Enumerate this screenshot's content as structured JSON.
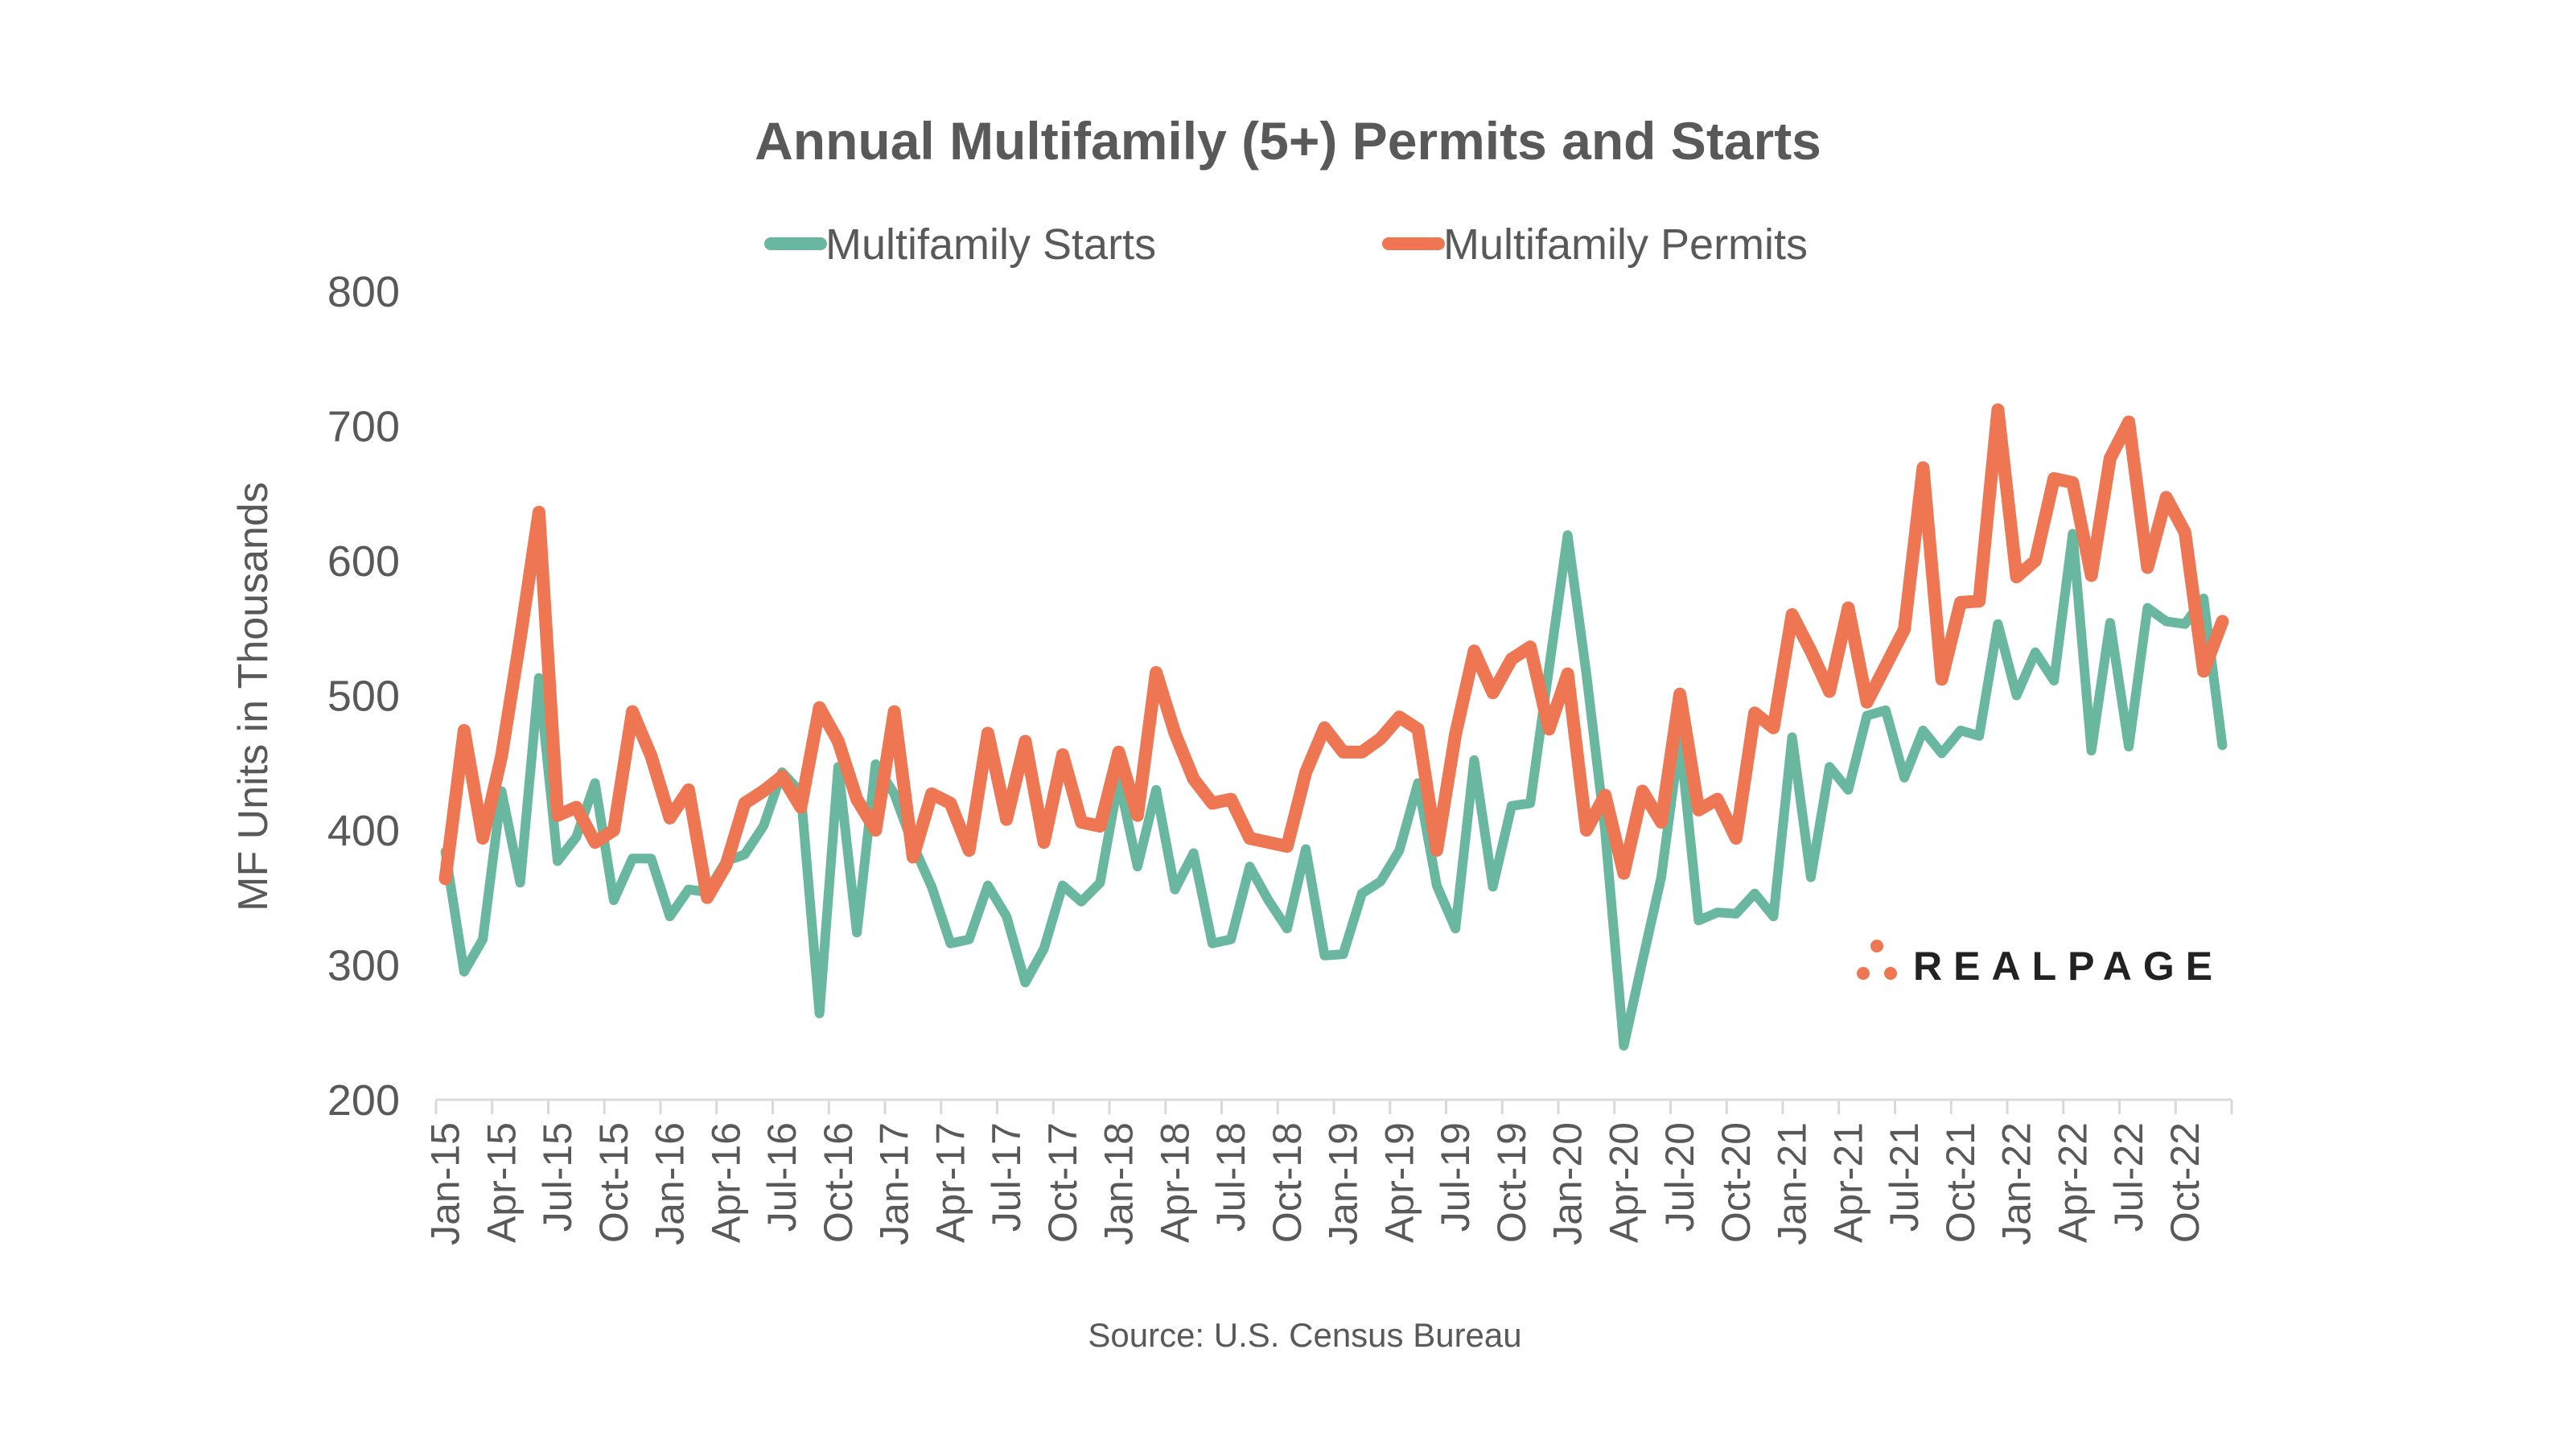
{
  "chart_data": {
    "type": "line",
    "title": "Annual Multifamily (5+) Permits and Starts",
    "xlabel": "",
    "ylabel": "MF Units in Thousands",
    "ylim": [
      200,
      800
    ],
    "yticks": [
      200,
      300,
      400,
      500,
      600,
      700,
      800
    ],
    "grid": false,
    "legend_position": "top-center",
    "source": "Source: U.S. Census Bureau",
    "brand": "REALPAGE",
    "x_start": "Jan-15",
    "x_end": "Dec-22",
    "x_frequency": "monthly",
    "xtick_labels": [
      "Jan-15",
      "Apr-15",
      "Jul-15",
      "Oct-15",
      "Jan-16",
      "Apr-16",
      "Jul-16",
      "Oct-16",
      "Jan-17",
      "Apr-17",
      "Jul-17",
      "Oct-17",
      "Jan-18",
      "Apr-18",
      "Jul-18",
      "Oct-18",
      "Jan-19",
      "Apr-19",
      "Jul-19",
      "Oct-19",
      "Jan-20",
      "Apr-20",
      "Jul-20",
      "Oct-20",
      "Jan-21",
      "Apr-21",
      "Jul-21",
      "Oct-21",
      "Jan-22",
      "Apr-22",
      "Jul-22",
      "Oct-22"
    ],
    "series": [
      {
        "name": "Multifamily Starts",
        "color": "#69B79E",
        "values": [
          384,
          295,
          319,
          429,
          361,
          513,
          377,
          395,
          435,
          348,
          379,
          379,
          336,
          356,
          354,
          377,
          382,
          403,
          443,
          428,
          264,
          447,
          324,
          449,
          427,
          389,
          358,
          316,
          319,
          359,
          336,
          287,
          312,
          359,
          347,
          361,
          438,
          373,
          430,
          356,
          383,
          316,
          319,
          373,
          348,
          327,
          386,
          307,
          308,
          353,
          362,
          385,
          435,
          359,
          327,
          452,
          358,
          418,
          420,
          520,
          619,
          516,
          400,
          240,
          303,
          365,
          469,
          333,
          339,
          338,
          353,
          336,
          469,
          365,
          447,
          430,
          485,
          489,
          439,
          474,
          457,
          474,
          470,
          553,
          500,
          532,
          511,
          620,
          459,
          554,
          462,
          565,
          555,
          553,
          572,
          463
        ]
      },
      {
        "name": "Multifamily Permits",
        "color": "#EE7653",
        "values": [
          364,
          474,
          394,
          455,
          542,
          636,
          411,
          417,
          391,
          400,
          488,
          455,
          409,
          430,
          350,
          374,
          420,
          429,
          440,
          417,
          491,
          466,
          423,
          400,
          488,
          380,
          427,
          420,
          385,
          472,
          408,
          466,
          391,
          456,
          406,
          403,
          458,
          411,
          517,
          472,
          438,
          420,
          423,
          394,
          391,
          388,
          443,
          476,
          458,
          458,
          468,
          484,
          475,
          385,
          471,
          533,
          502,
          527,
          536,
          475,
          516,
          400,
          426,
          368,
          429,
          406,
          501,
          415,
          423,
          394,
          487,
          476,
          560,
          533,
          503,
          565,
          495,
          522,
          549,
          669,
          512,
          569,
          570,
          712,
          588,
          600,
          661,
          658,
          589,
          676,
          703,
          595,
          647,
          621,
          518,
          555
        ]
      }
    ]
  }
}
